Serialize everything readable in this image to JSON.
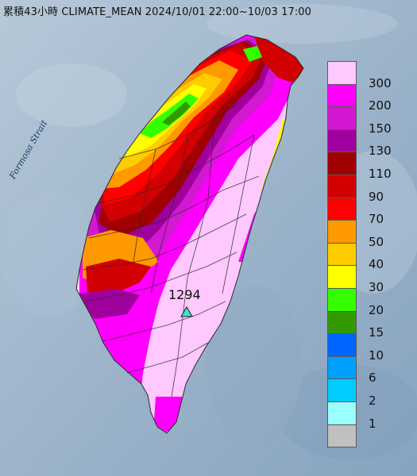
{
  "title": "累積43小時 CLIMATE_MEAN 2024/10/01 22:00~10/03 17:00",
  "strait_label": "Formosa Strait",
  "max_point": {
    "value": "1294",
    "marker_icon": "triangle-marker-icon",
    "marker_color": "#40e0d0"
  },
  "colors": {
    "sea": "#9fb6cc",
    "island_outline": "#2a2a2a"
  },
  "legend": {
    "items": [
      {
        "label": "300",
        "color": "#ffc8ff"
      },
      {
        "label": "200",
        "color": "#ff00ff"
      },
      {
        "label": "150",
        "color": "#d218d2"
      },
      {
        "label": "130",
        "color": "#a0009e"
      },
      {
        "label": "110",
        "color": "#a00000"
      },
      {
        "label": "90",
        "color": "#d20000"
      },
      {
        "label": "70",
        "color": "#ff0000"
      },
      {
        "label": "50",
        "color": "#ff9900"
      },
      {
        "label": "40",
        "color": "#ffcc00"
      },
      {
        "label": "30",
        "color": "#ffff00"
      },
      {
        "label": "20",
        "color": "#33ff00"
      },
      {
        "label": "15",
        "color": "#339900"
      },
      {
        "label": "10",
        "color": "#0066ff"
      },
      {
        "label": "6",
        "color": "#00a0ff"
      },
      {
        "label": "2",
        "color": "#00ccff"
      },
      {
        "label": "1",
        "color": "#99ffff"
      },
      {
        "label": "",
        "color": "#c0c0c0"
      }
    ]
  }
}
